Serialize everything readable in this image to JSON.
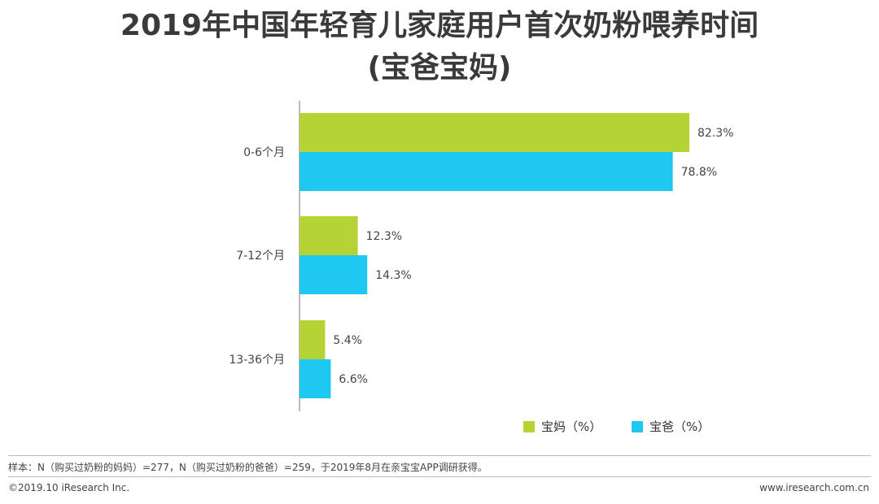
{
  "title": "2019年中国年轻育儿家庭用户首次奶粉喂养时间",
  "subtitle": "(宝爸宝妈)",
  "colors": {
    "mom": "#b5d334",
    "dad": "#1ec8f0"
  },
  "chart_data": {
    "type": "bar",
    "orientation": "horizontal",
    "categories": [
      "0-6个月",
      "7-12个月",
      "13-36个月"
    ],
    "series": [
      {
        "name": "宝妈（%）",
        "values": [
          82.3,
          12.3,
          5.4
        ]
      },
      {
        "name": "宝爸（%）",
        "values": [
          78.8,
          14.3,
          6.6
        ]
      }
    ],
    "data_labels": [
      [
        "82.3%",
        "12.3%",
        "5.4%"
      ],
      [
        "78.8%",
        "14.3%",
        "6.6%"
      ]
    ],
    "xlim": [
      0,
      100
    ],
    "grid": false,
    "legend_position": "bottom-right"
  },
  "footer": {
    "sample_note": "样本：N（购买过奶粉的妈妈）=277，N（购买过奶粉的爸爸）=259，于2019年8月在亲宝宝APP调研获得。",
    "copyright": "©2019.10 iResearch Inc.",
    "website": "www.iresearch.com.cn"
  }
}
